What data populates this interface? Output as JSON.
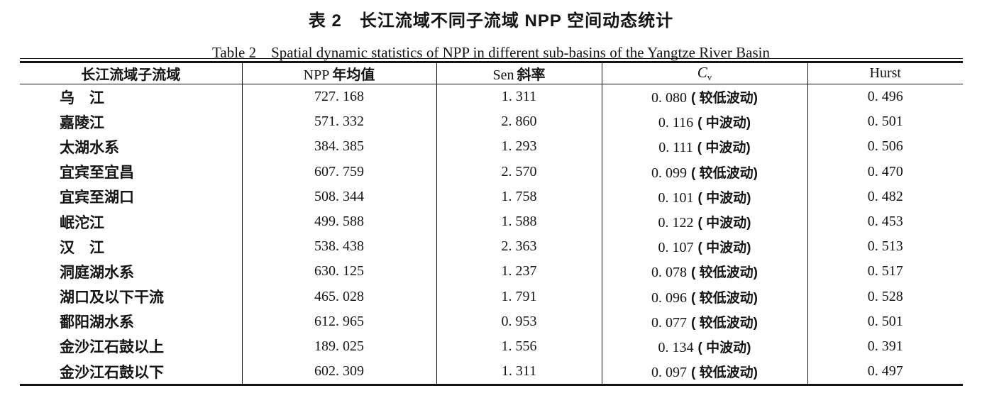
{
  "titles": {
    "zh": "表 2　长江流域不同子流域 NPP 空间动态统计",
    "en": "Table 2　Spatial dynamic statistics of NPP in different sub-basins of the Yangtze River Basin"
  },
  "table": {
    "header": {
      "col1": "长江流域子流域",
      "col2_latin": "NPP",
      "col2_zh": "年均值",
      "col3_latin": "Sen",
      "col3_zh": "斜率",
      "col4_base": "C",
      "col4_sub": "v",
      "col5": "Hurst"
    },
    "rows": [
      {
        "basin": "乌　江",
        "npp": "727. 168",
        "sen": "1. 311",
        "cv_value": "0. 080",
        "cv_label": "( 较低波动)",
        "hurst": "0. 496"
      },
      {
        "basin": "嘉陵江",
        "npp": "571. 332",
        "sen": "2. 860",
        "cv_value": "0. 116",
        "cv_label": "( 中波动)",
        "hurst": "0. 501"
      },
      {
        "basin": "太湖水系",
        "npp": "384. 385",
        "sen": "1. 293",
        "cv_value": "0. 111",
        "cv_label": "( 中波动)",
        "hurst": "0. 506"
      },
      {
        "basin": "宜宾至宜昌",
        "npp": "607. 759",
        "sen": "2. 570",
        "cv_value": "0. 099",
        "cv_label": "( 较低波动)",
        "hurst": "0. 470"
      },
      {
        "basin": "宜宾至湖口",
        "npp": "508. 344",
        "sen": "1. 758",
        "cv_value": "0. 101",
        "cv_label": "( 中波动)",
        "hurst": "0. 482"
      },
      {
        "basin": "岷沱江",
        "npp": "499. 588",
        "sen": "1. 588",
        "cv_value": "0. 122",
        "cv_label": "( 中波动)",
        "hurst": "0. 453"
      },
      {
        "basin": "汉　江",
        "npp": "538. 438",
        "sen": "2. 363",
        "cv_value": "0. 107",
        "cv_label": "( 中波动)",
        "hurst": "0. 513"
      },
      {
        "basin": "洞庭湖水系",
        "npp": "630. 125",
        "sen": "1. 237",
        "cv_value": "0. 078",
        "cv_label": "( 较低波动)",
        "hurst": "0. 517"
      },
      {
        "basin": "湖口及以下干流",
        "npp": "465. 028",
        "sen": "1. 791",
        "cv_value": "0. 096",
        "cv_label": "( 较低波动)",
        "hurst": "0. 528"
      },
      {
        "basin": "鄱阳湖水系",
        "npp": "612. 965",
        "sen": "0. 953",
        "cv_value": "0. 077",
        "cv_label": "( 较低波动)",
        "hurst": "0. 501"
      },
      {
        "basin": "金沙江石鼓以上",
        "npp": "189. 025",
        "sen": "1. 556",
        "cv_value": "0. 134",
        "cv_label": "( 中波动)",
        "hurst": "0. 391"
      },
      {
        "basin": "金沙江石鼓以下",
        "npp": "602. 309",
        "sen": "1. 311",
        "cv_value": "0. 097",
        "cv_label": "( 较低波动)",
        "hurst": "0. 497"
      }
    ]
  }
}
